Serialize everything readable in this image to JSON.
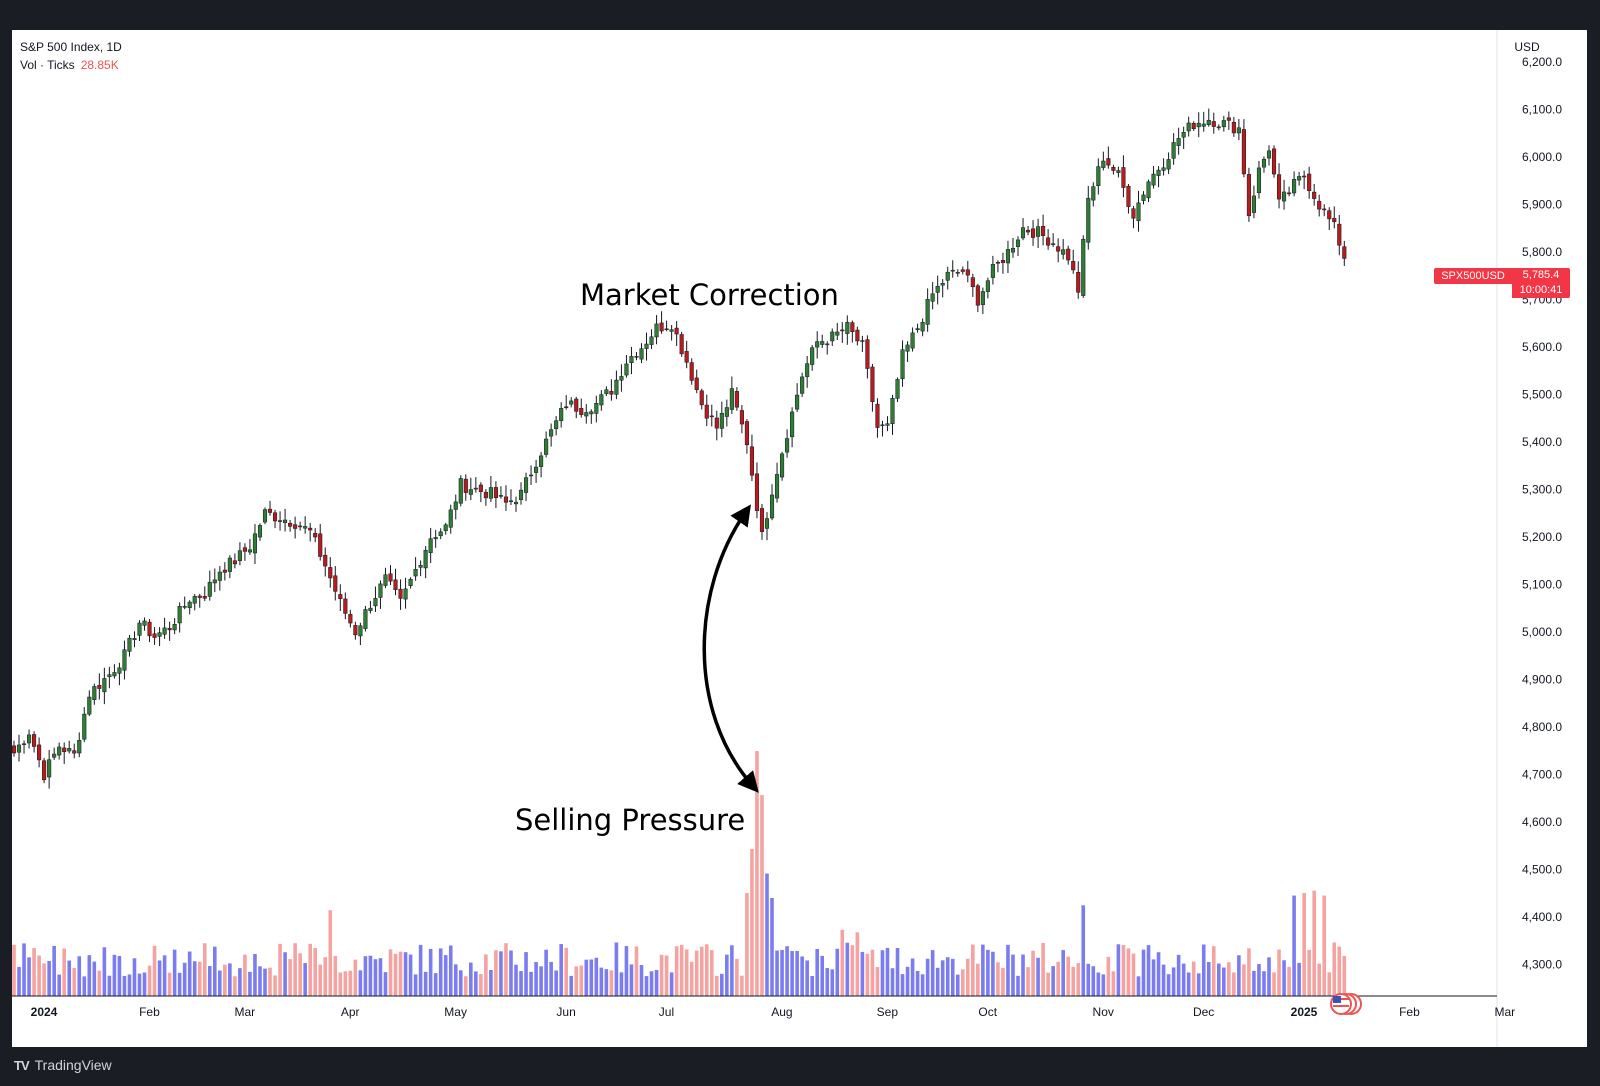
{
  "header": {
    "symbol_line": "S&P 500 Index, 1D",
    "volume_label": "Vol · Ticks",
    "volume_value": "28.85K"
  },
  "axis": {
    "currency": "USD"
  },
  "price_tag": {
    "symbol": "SPX500USD",
    "price": "5,785.4",
    "countdown": "10:00:41"
  },
  "annotations": {
    "correction": "Market Correction",
    "selling": "Selling Pressure"
  },
  "brand": {
    "name": "TradingView"
  },
  "colors": {
    "up": "#26a69a",
    "down": "#ef5350",
    "candle_up_body": "#2e7d32",
    "candle_down_body": "#b71c1c",
    "vol_up": "#7b7cf0",
    "vol_down": "#f4a3a0",
    "tag": "#f23645",
    "frame": "#1b1d24"
  },
  "chart_data": {
    "type": "candlestick",
    "interval": "1D",
    "y_axis": {
      "min": 4250,
      "max": 6250,
      "ticks": [
        6200,
        6100,
        6000,
        5900,
        5800,
        5700,
        5600,
        5500,
        5400,
        5300,
        5200,
        5100,
        5000,
        4900,
        4800,
        4700,
        4600,
        4500,
        4400,
        4300
      ],
      "tick_labels": [
        "6,200.0",
        "6,100.0",
        "6,000.0",
        "5,900.0",
        "5,800.0",
        "5,700.0",
        "5,600.0",
        "5,500.0",
        "5,400.0",
        "5,300.0",
        "5,200.0",
        "5,100.0",
        "5,000.0",
        "4,900.0",
        "4,800.0",
        "4,700.0",
        "4,600.0",
        "4,500.0",
        "4,400.0",
        "4,300.0"
      ]
    },
    "x_axis": {
      "labels": [
        "2024",
        "Feb",
        "Mar",
        "Apr",
        "May",
        "Jun",
        "Jul",
        "Aug",
        "Sep",
        "Oct",
        "Nov",
        "Dec",
        "2025",
        "Feb",
        "Mar"
      ],
      "bold_labels": [
        "2024",
        "2025"
      ],
      "label_day_index": [
        0,
        21,
        40,
        61,
        82,
        104,
        124,
        147,
        168,
        188,
        211,
        231,
        251,
        272,
        291
      ]
    },
    "close_path": [
      [
        0,
        4745
      ],
      [
        3,
        4790
      ],
      [
        6,
        4700
      ],
      [
        9,
        4760
      ],
      [
        12,
        4740
      ],
      [
        15,
        4870
      ],
      [
        19,
        4910
      ],
      [
        22,
        4950
      ],
      [
        25,
        5020
      ],
      [
        28,
        4990
      ],
      [
        31,
        5010
      ],
      [
        35,
        5070
      ],
      [
        38,
        5080
      ],
      [
        41,
        5130
      ],
      [
        44,
        5150
      ],
      [
        47,
        5180
      ],
      [
        50,
        5250
      ],
      [
        53,
        5240
      ],
      [
        56,
        5230
      ],
      [
        59,
        5210
      ],
      [
        62,
        5140
      ],
      [
        65,
        5060
      ],
      [
        68,
        5000
      ],
      [
        71,
        5060
      ],
      [
        74,
        5110
      ],
      [
        77,
        5060
      ],
      [
        80,
        5130
      ],
      [
        83,
        5200
      ],
      [
        86,
        5220
      ],
      [
        89,
        5310
      ],
      [
        92,
        5300
      ],
      [
        95,
        5290
      ],
      [
        98,
        5270
      ],
      [
        101,
        5290
      ],
      [
        104,
        5360
      ],
      [
        107,
        5420
      ],
      [
        110,
        5480
      ],
      [
        113,
        5470
      ],
      [
        116,
        5480
      ],
      [
        119,
        5510
      ],
      [
        122,
        5570
      ],
      [
        125,
        5600
      ],
      [
        128,
        5640
      ],
      [
        131,
        5650
      ],
      [
        134,
        5570
      ],
      [
        137,
        5480
      ],
      [
        140,
        5430
      ],
      [
        143,
        5500
      ],
      [
        146,
        5400
      ],
      [
        149,
        5200
      ],
      [
        151,
        5300
      ],
      [
        154,
        5420
      ],
      [
        157,
        5540
      ],
      [
        160,
        5610
      ],
      [
        163,
        5620
      ],
      [
        166,
        5640
      ],
      [
        169,
        5600
      ],
      [
        172,
        5430
      ],
      [
        174,
        5430
      ],
      [
        177,
        5580
      ],
      [
        180,
        5640
      ],
      [
        183,
        5710
      ],
      [
        186,
        5750
      ],
      [
        189,
        5760
      ],
      [
        192,
        5700
      ],
      [
        195,
        5760
      ],
      [
        198,
        5800
      ],
      [
        201,
        5850
      ],
      [
        204,
        5840
      ],
      [
        207,
        5820
      ],
      [
        210,
        5790
      ],
      [
        212,
        5720
      ],
      [
        214,
        5910
      ],
      [
        217,
        6000
      ],
      [
        220,
        5960
      ],
      [
        223,
        5880
      ],
      [
        226,
        5950
      ],
      [
        229,
        5990
      ],
      [
        232,
        6040
      ],
      [
        235,
        6070
      ],
      [
        238,
        6080
      ],
      [
        241,
        6070
      ],
      [
        244,
        6060
      ],
      [
        246,
        5880
      ],
      [
        248,
        5970
      ],
      [
        250,
        6020
      ],
      [
        252,
        5900
      ],
      [
        255,
        5940
      ],
      [
        257,
        5960
      ],
      [
        260,
        5900
      ],
      [
        263,
        5850
      ],
      [
        265,
        5790
      ]
    ],
    "volume_spikes": [
      {
        "day": 148,
        "value": 100
      },
      {
        "day": 149,
        "value": 82
      },
      {
        "day": 147,
        "value": 60
      },
      {
        "day": 150,
        "value": 50
      },
      {
        "day": 151,
        "value": 40
      },
      {
        "day": 146,
        "value": 42
      },
      {
        "day": 213,
        "value": 37
      },
      {
        "day": 259,
        "value": 43
      },
      {
        "day": 257,
        "value": 42
      },
      {
        "day": 255,
        "value": 41
      },
      {
        "day": 261,
        "value": 41
      },
      {
        "day": 63,
        "value": 35
      },
      {
        "day": 165,
        "value": 27
      },
      {
        "day": 168,
        "value": 26
      }
    ],
    "total_days": 300
  }
}
